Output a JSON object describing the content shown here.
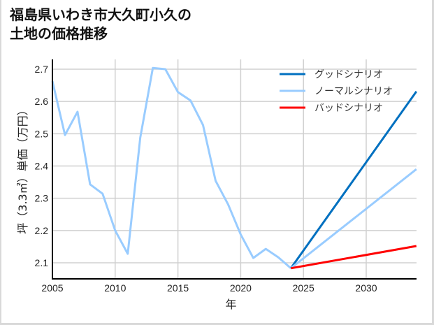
{
  "title_line1": "福島県いわき市大久町小久の",
  "title_line2": "土地の価格推移",
  "chart_data": {
    "type": "line",
    "title": "福島県いわき市大久町小久の土地の価格推移",
    "xlabel": "年",
    "ylabel": "坪（3.3㎡）単価（万円）",
    "xlim": [
      2005,
      2034
    ],
    "ylim": [
      2.05,
      2.73
    ],
    "xticks": [
      "2005",
      "2010",
      "2015",
      "2020",
      "2025",
      "2030"
    ],
    "yticks": [
      "2.1",
      "2.2",
      "2.3",
      "2.4",
      "2.5",
      "2.6",
      "2.7"
    ],
    "grid": true,
    "legend_position": "upper right",
    "series": [
      {
        "name": "ノーマルシナリオ (実績)",
        "color": "#99ccff",
        "x": [
          2005,
          2006,
          2007,
          2008,
          2009,
          2010,
          2011,
          2012,
          2013,
          2014,
          2015,
          2016,
          2017,
          2018,
          2019,
          2020,
          2021,
          2022,
          2023,
          2024
        ],
        "values": [
          2.663,
          2.496,
          2.568,
          2.343,
          2.314,
          2.2,
          2.128,
          2.488,
          2.704,
          2.7,
          2.629,
          2.603,
          2.527,
          2.354,
          2.281,
          2.188,
          2.115,
          2.143,
          2.117,
          2.083
        ]
      },
      {
        "name": "グッドシナリオ",
        "color": "#0070c0",
        "x": [
          2024,
          2034
        ],
        "values": [
          2.083,
          2.631
        ]
      },
      {
        "name": "ノーマルシナリオ",
        "color": "#99ccff",
        "x": [
          2024,
          2034
        ],
        "values": [
          2.083,
          2.39
        ]
      },
      {
        "name": "バッドシナリオ",
        "color": "#ff0000",
        "x": [
          2024,
          2034
        ],
        "values": [
          2.083,
          2.152
        ]
      }
    ]
  },
  "legend": [
    {
      "label": "グッドシナリオ",
      "color": "#0070c0"
    },
    {
      "label": "ノーマルシナリオ",
      "color": "#99ccff"
    },
    {
      "label": "バッドシナリオ",
      "color": "#ff0000"
    }
  ]
}
